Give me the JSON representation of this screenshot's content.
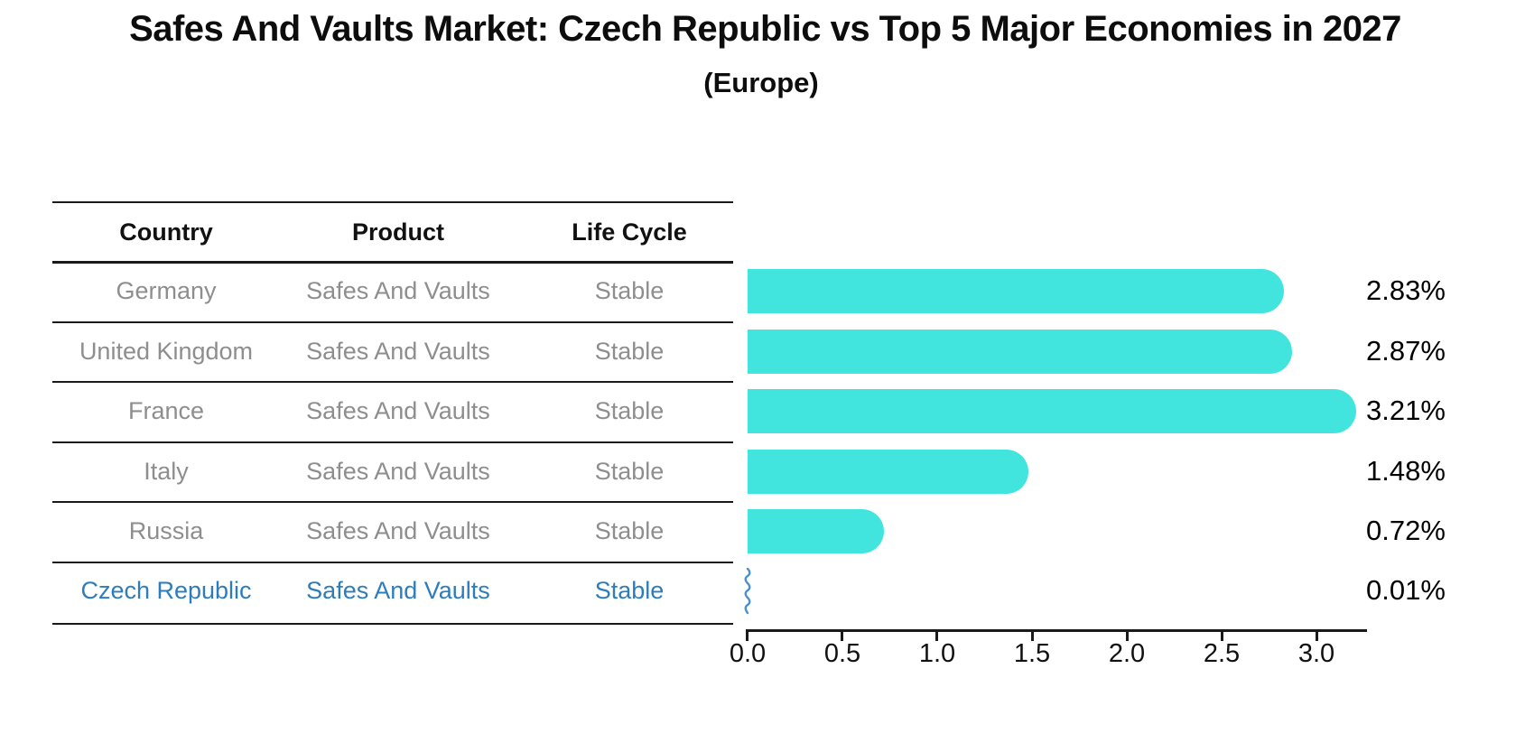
{
  "title": "Safes And Vaults Market: Czech Republic vs Top 5 Major Economies in 2027",
  "subtitle": "(Europe)",
  "table": {
    "headers": {
      "country": "Country",
      "product": "Product",
      "life_cycle": "Life Cycle"
    },
    "rows": [
      {
        "country": "Germany",
        "product": "Safes And Vaults",
        "life_cycle": "Stable",
        "highlighted": false
      },
      {
        "country": "United Kingdom",
        "product": "Safes And Vaults",
        "life_cycle": "Stable",
        "highlighted": false
      },
      {
        "country": "France",
        "product": "Safes And Vaults",
        "life_cycle": "Stable",
        "highlighted": false
      },
      {
        "country": "Italy",
        "product": "Safes And Vaults",
        "life_cycle": "Stable",
        "highlighted": false
      },
      {
        "country": "Russia",
        "product": "Safes And Vaults",
        "life_cycle": "Stable",
        "highlighted": false
      },
      {
        "country": "Czech Republic",
        "product": "Safes And Vaults",
        "life_cycle": "Stable",
        "highlighted": true
      }
    ]
  },
  "chart_data": {
    "type": "bar",
    "orientation": "horizontal",
    "title": "Safes And Vaults Market: Czech Republic vs Top 5 Major Economies in 2027",
    "subtitle": "(Europe)",
    "categories": [
      "Germany",
      "United Kingdom",
      "France",
      "Italy",
      "Russia",
      "Czech Republic"
    ],
    "values": [
      2.83,
      2.87,
      3.21,
      1.48,
      0.72,
      0.01
    ],
    "value_labels": [
      "2.83%",
      "2.87%",
      "3.21%",
      "1.48%",
      "0.72%",
      "0.01%"
    ],
    "x_ticks": [
      "0.0",
      "0.5",
      "1.0",
      "1.5",
      "2.0",
      "2.5",
      "3.0"
    ],
    "xlim": [
      0,
      3.4
    ],
    "xlabel": "",
    "ylabel": "",
    "grid": false,
    "legend": false,
    "bar_color": "#42e5de",
    "highlight_bar_color": "#4a90d2",
    "highlight_text_color": "#2d7dbd",
    "axis_color": "#1a1a1a",
    "row_text_color": "#8e8e8e"
  }
}
